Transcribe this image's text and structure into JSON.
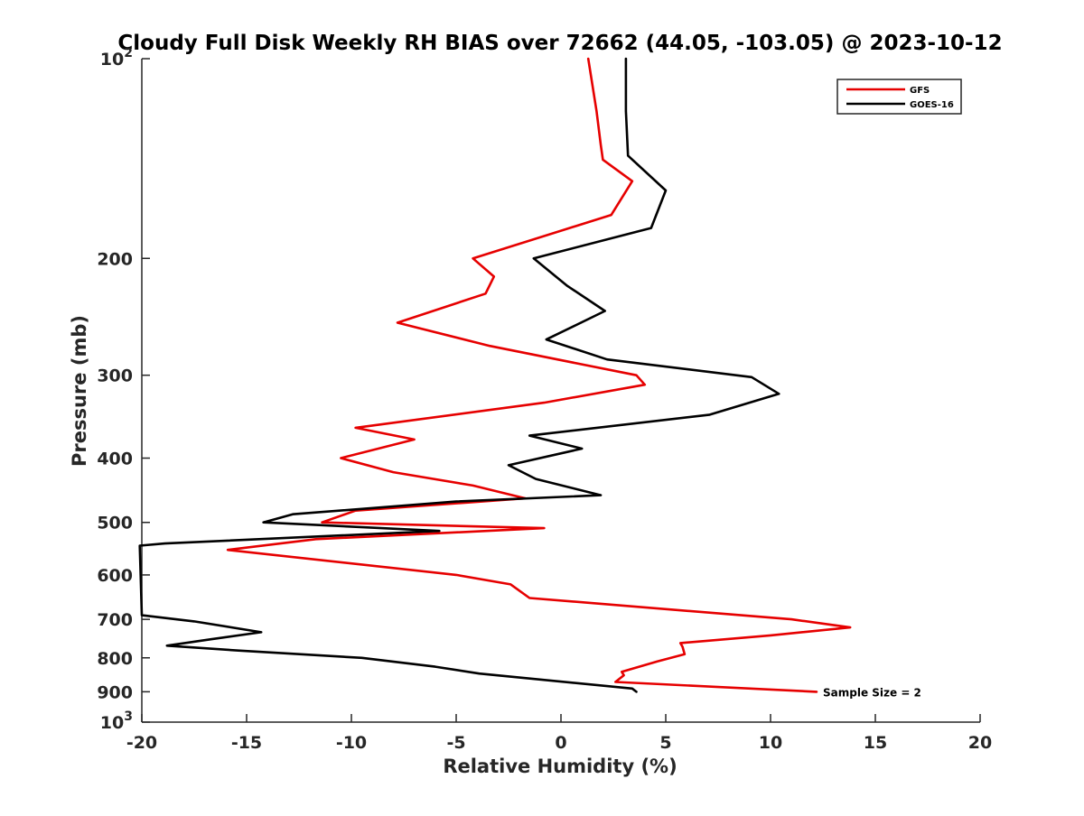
{
  "chart_data": {
    "type": "line",
    "title": "Cloudy Full Disk Weekly RH BIAS over 72662 (44.05, -103.05) @ 2023-10-12",
    "xlabel": "Relative Humidity (%)",
    "ylabel": "Pressure (mb)",
    "xlim": [
      -20,
      20
    ],
    "ylim": [
      100,
      1000
    ],
    "y_scale": "log",
    "y_reversed": true,
    "x_ticks": [
      -20,
      -15,
      -10,
      -5,
      0,
      5,
      10,
      15,
      20
    ],
    "x_tick_labels": [
      "-20",
      "-15",
      "-10",
      "-5",
      "0",
      "5",
      "10",
      "15",
      "20"
    ],
    "y_ticks": [
      {
        "value": 100,
        "base": "10",
        "exp": "2"
      },
      {
        "value": 200,
        "label": "200"
      },
      {
        "value": 300,
        "label": "300"
      },
      {
        "value": 400,
        "label": "400"
      },
      {
        "value": 500,
        "label": "500"
      },
      {
        "value": 600,
        "label": "600"
      },
      {
        "value": 700,
        "label": "700"
      },
      {
        "value": 800,
        "label": "800"
      },
      {
        "value": 900,
        "label": "900"
      },
      {
        "value": 1000,
        "base": "10",
        "exp": "3"
      }
    ],
    "grid": false,
    "legend_position": "top-right",
    "series": [
      {
        "name": "GFS",
        "color": "#e60000",
        "points": [
          [
            1.3,
            100
          ],
          [
            1.7,
            120
          ],
          [
            1.9,
            135
          ],
          [
            2.0,
            142
          ],
          [
            3.4,
            153
          ],
          [
            2.4,
            172
          ],
          [
            -4.2,
            200
          ],
          [
            -3.2,
            213
          ],
          [
            -3.6,
            226
          ],
          [
            -7.8,
            250
          ],
          [
            -3.4,
            271
          ],
          [
            3.6,
            300
          ],
          [
            4.0,
            310
          ],
          [
            -0.8,
            330
          ],
          [
            -9.8,
            360
          ],
          [
            -7.0,
            375
          ],
          [
            -10.5,
            400
          ],
          [
            -8.0,
            420
          ],
          [
            -4.2,
            440
          ],
          [
            -1.7,
            460
          ],
          [
            -9.8,
            480
          ],
          [
            -11.4,
            500
          ],
          [
            -0.8,
            510
          ],
          [
            -11.7,
            530
          ],
          [
            -15.9,
            550
          ],
          [
            -5.0,
            600
          ],
          [
            -2.4,
            620
          ],
          [
            -1.5,
            650
          ],
          [
            11.0,
            700
          ],
          [
            13.8,
            720
          ],
          [
            10.0,
            740
          ],
          [
            5.7,
            760
          ],
          [
            5.8,
            770
          ],
          [
            5.9,
            790
          ],
          [
            4.6,
            810
          ],
          [
            2.9,
            840
          ],
          [
            3.0,
            850
          ],
          [
            2.6,
            870
          ],
          [
            12.2,
            900
          ]
        ]
      },
      {
        "name": "GOES-16",
        "color": "#000000",
        "points": [
          [
            3.1,
            100
          ],
          [
            3.1,
            120
          ],
          [
            3.2,
            140
          ],
          [
            5.0,
            158
          ],
          [
            4.3,
            180
          ],
          [
            -1.3,
            200
          ],
          [
            0.3,
            220
          ],
          [
            2.1,
            240
          ],
          [
            -0.7,
            265
          ],
          [
            2.2,
            284
          ],
          [
            9.1,
            302
          ],
          [
            10.4,
            320
          ],
          [
            7.1,
            344
          ],
          [
            -1.5,
            370
          ],
          [
            1.0,
            387
          ],
          [
            -2.5,
            410
          ],
          [
            -1.2,
            430
          ],
          [
            1.9,
            455
          ],
          [
            -5.0,
            465
          ],
          [
            -12.8,
            486
          ],
          [
            -14.2,
            500
          ],
          [
            -5.8,
            515
          ],
          [
            -18.9,
            538
          ],
          [
            -20.1,
            542
          ],
          [
            -20.0,
            690
          ],
          [
            -17.5,
            705
          ],
          [
            -14.3,
            732
          ],
          [
            -16.7,
            750
          ],
          [
            -18.8,
            767
          ],
          [
            -15.4,
            780
          ],
          [
            -9.5,
            800
          ],
          [
            -6.0,
            825
          ],
          [
            -3.9,
            845
          ],
          [
            3.4,
            890
          ],
          [
            3.6,
            900
          ]
        ]
      }
    ],
    "annotations": [
      {
        "text": "Sample Size = 2",
        "x": 12.5,
        "y": 900
      }
    ]
  }
}
